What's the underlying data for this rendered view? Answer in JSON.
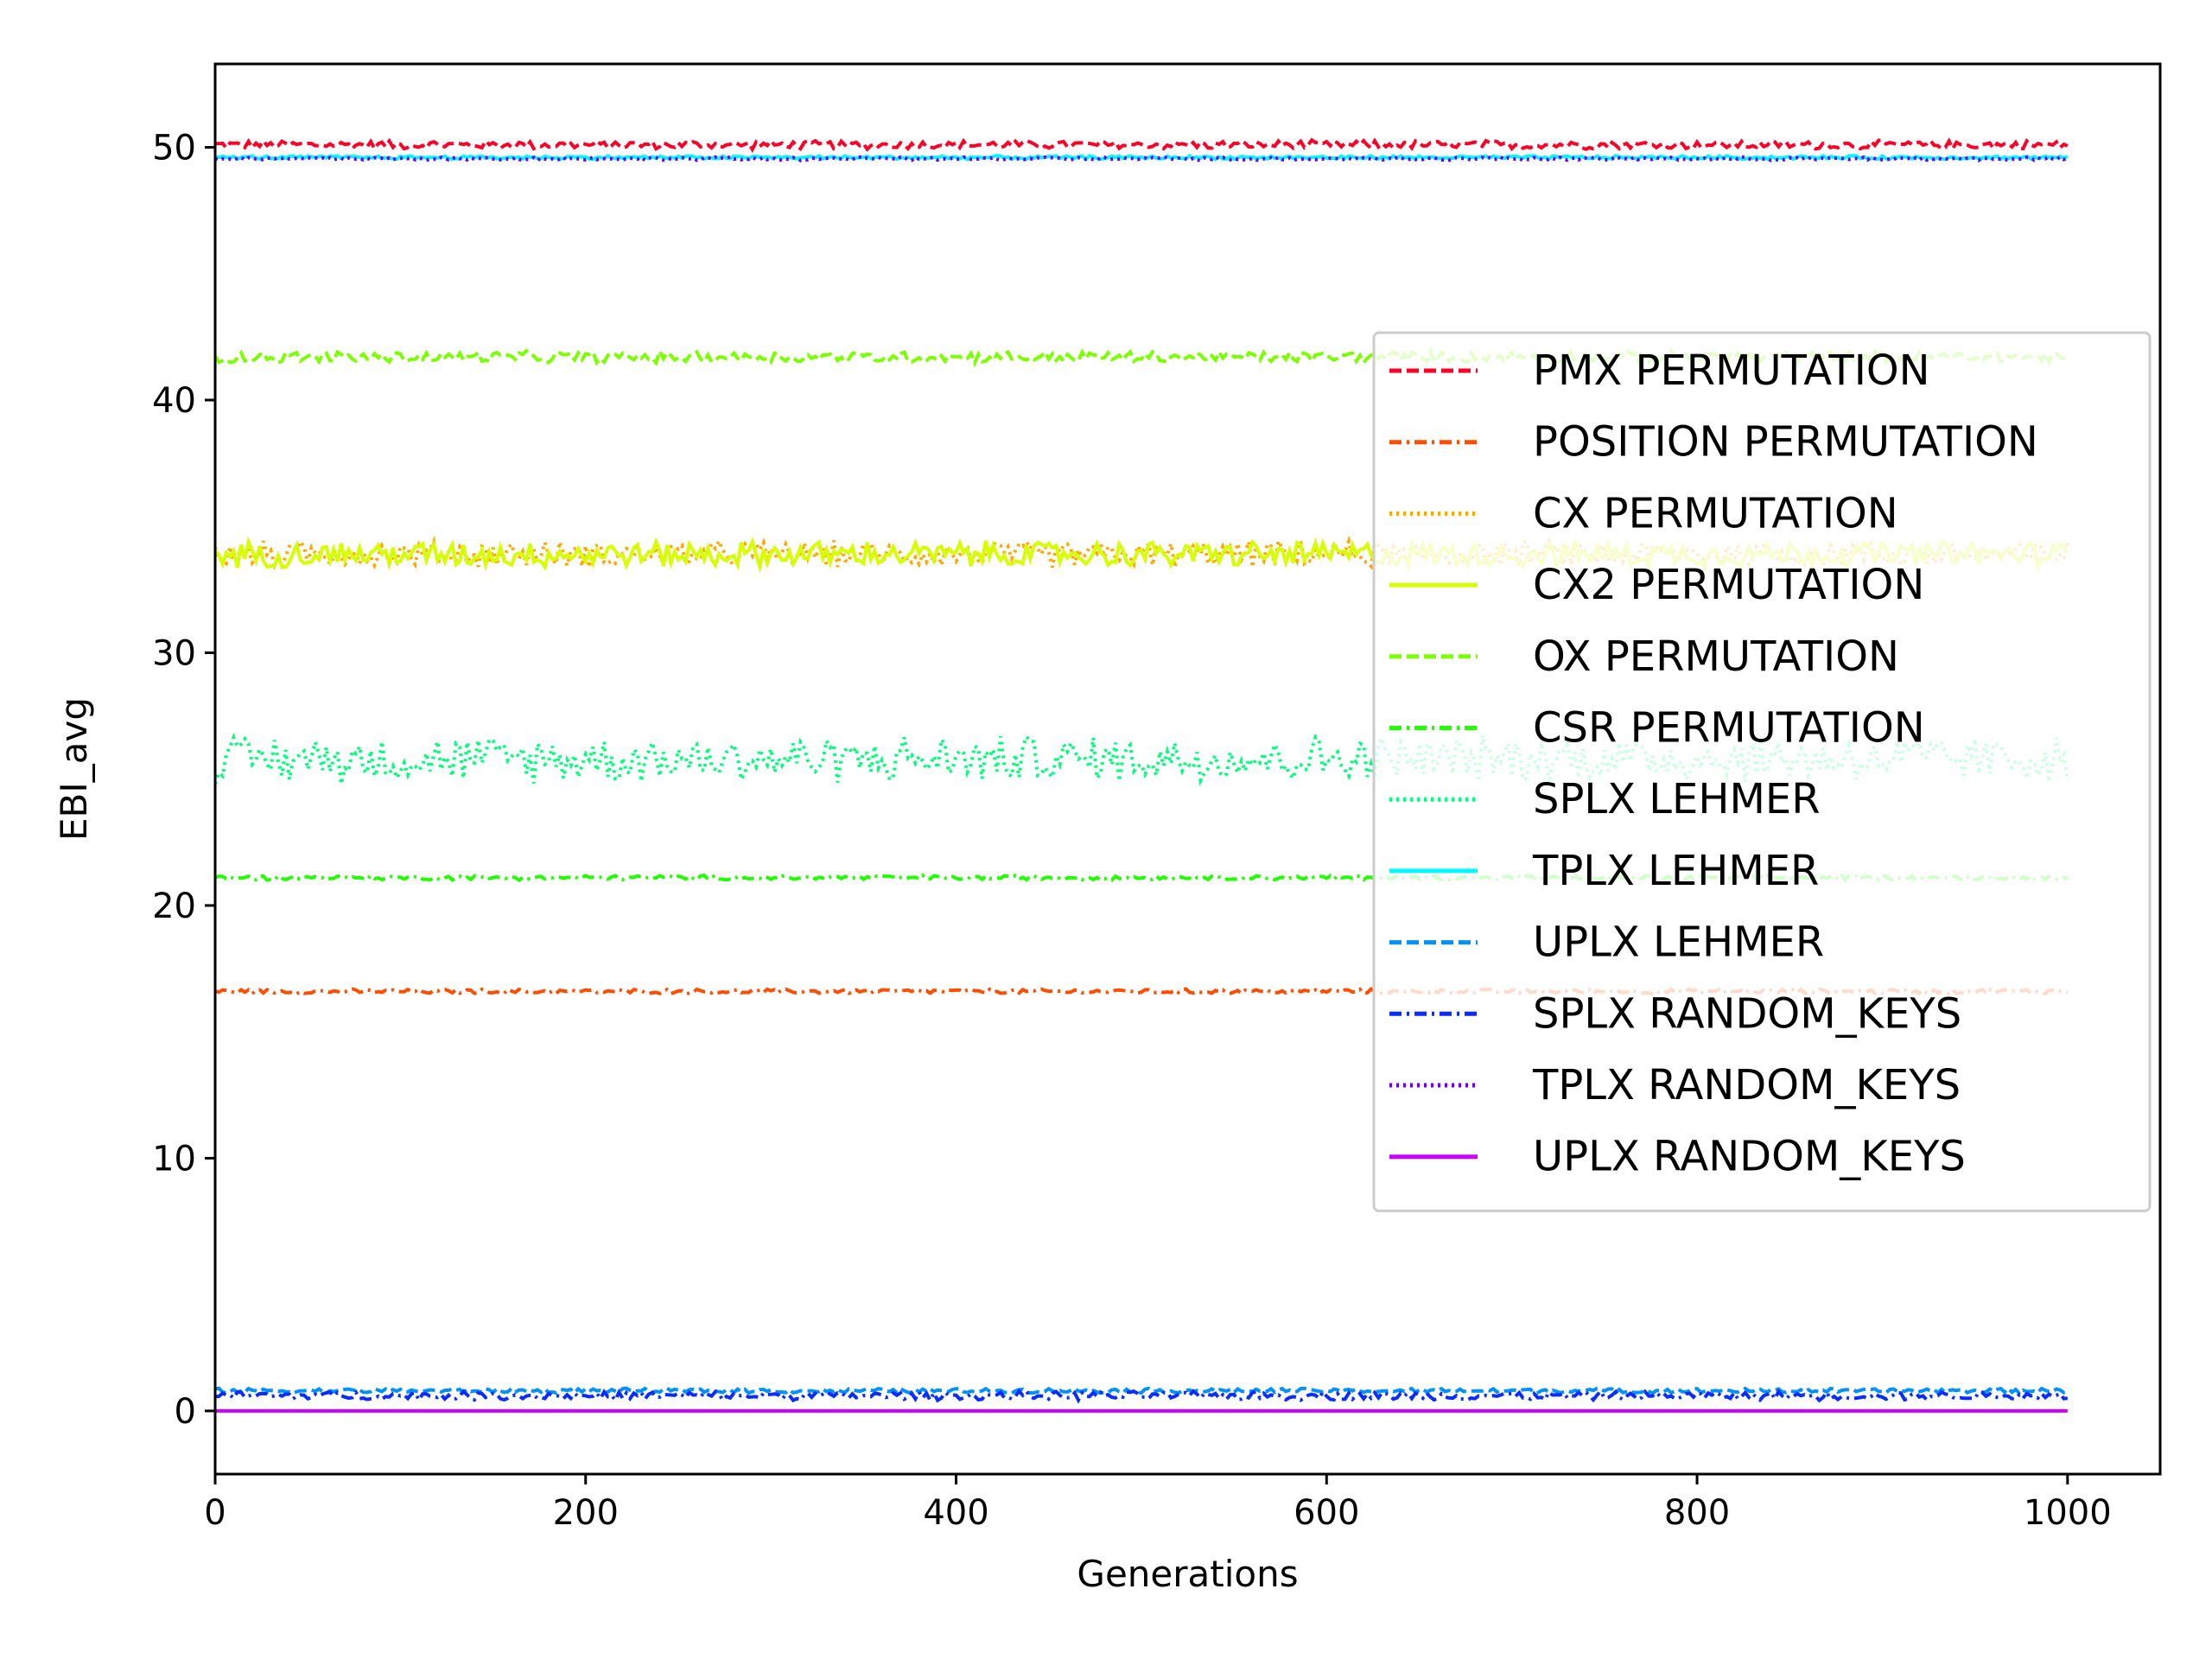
{
  "chart_data": {
    "type": "line",
    "title": "",
    "xlabel": "Generations",
    "ylabel": "EBI_avg",
    "xlim": [
      0,
      1050
    ],
    "ylim": [
      -2.5,
      53.3
    ],
    "xticks": [
      0,
      200,
      400,
      600,
      800,
      1000
    ],
    "xtick_labels": [
      "0",
      "200",
      "400",
      "600",
      "800",
      "1000"
    ],
    "yticks": [
      0,
      10,
      20,
      30,
      40,
      50
    ],
    "ytick_labels": [
      "0",
      "10",
      "20",
      "30",
      "40",
      "50"
    ],
    "grid": false,
    "legend_position": "center-right",
    "x_range": [
      0,
      1000
    ],
    "series": [
      {
        "name": "PMX PERMUTATION",
        "color": "#ff0029",
        "style": "dashed",
        "mean": 50.1,
        "noise": 0.15
      },
      {
        "name": "POSITION PERMUTATION",
        "color": "#ff4e00",
        "style": "dashdot",
        "mean": 16.6,
        "noise": 0.08
      },
      {
        "name": "CX PERMUTATION",
        "color": "#ffa800",
        "style": "dotted",
        "mean": 33.9,
        "noise": 0.45
      },
      {
        "name": "CX2 PERMUTATION",
        "color": "#d6ff00",
        "style": "solid",
        "mean": 33.9,
        "noise": 0.45
      },
      {
        "name": "OX PERMUTATION",
        "color": "#7cff00",
        "style": "dashed",
        "mean": 41.7,
        "noise": 0.2
      },
      {
        "name": "CSR PERMUTATION",
        "color": "#22ff00",
        "style": "dashdot",
        "mean": 21.1,
        "noise": 0.08
      },
      {
        "name": "SPLX LEHMER",
        "color": "#00ff7c",
        "style": "dotted",
        "mean": 25.8,
        "noise": 0.8
      },
      {
        "name": "TPLX LEHMER",
        "color": "#00f8ff",
        "style": "solid",
        "mean": 49.6,
        "noise": 0.06
      },
      {
        "name": "UPLX LEHMER",
        "color": "#0091ff",
        "style": "dashed",
        "mean": 0.8,
        "noise": 0.08
      },
      {
        "name": "SPLX RANDOM_KEYS",
        "color": "#0a2cff",
        "style": "dashdot",
        "mean": 0.6,
        "noise": 0.15
      },
      {
        "name": "TPLX RANDOM_KEYS",
        "color": "#6a00ff",
        "style": "dotted",
        "mean": 49.55,
        "noise": 0.06
      },
      {
        "name": "UPLX RANDOM_KEYS",
        "color": "#cc00ff",
        "style": "solid",
        "mean": 0.0,
        "noise": 0.0
      }
    ]
  }
}
